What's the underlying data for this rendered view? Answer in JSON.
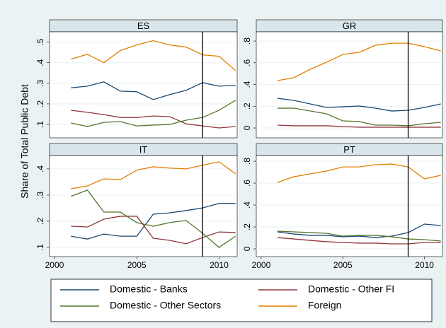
{
  "chart_data": [
    {
      "type": "line",
      "title": "ES",
      "y_label": "Share of Total Public Debt",
      "x": [
        2001,
        2002,
        2003,
        2004,
        2005,
        2006,
        2007,
        2008,
        2009,
        2010,
        2011
      ],
      "xlim": [
        1999.7,
        2011.1
      ],
      "ylim": [
        0.035,
        0.55
      ],
      "yticks": [
        {
          "value": 0.1,
          "label": ".1"
        },
        {
          "value": 0.2,
          "label": ".2"
        },
        {
          "value": 0.3,
          "label": ".3"
        },
        {
          "value": 0.4,
          "label": ".4"
        },
        {
          "value": 0.5,
          "label": ".5"
        }
      ],
      "vline": 2009,
      "grid": true,
      "series": [
        {
          "name": "Domestic - Banks",
          "color": "#1a476f",
          "values": [
            0.278,
            0.286,
            0.307,
            0.262,
            0.259,
            0.221,
            0.245,
            0.266,
            0.303,
            0.286,
            0.29
          ]
        },
        {
          "name": "Domestic - Other FI",
          "color": "#90353b",
          "values": [
            0.169,
            0.159,
            0.148,
            0.134,
            0.134,
            0.141,
            0.138,
            0.103,
            0.093,
            0.083,
            0.09
          ]
        },
        {
          "name": "Domestic - Other Sectors",
          "color": "#55752f",
          "values": [
            0.107,
            0.09,
            0.11,
            0.114,
            0.093,
            0.097,
            0.1,
            0.121,
            0.134,
            0.169,
            0.217
          ]
        },
        {
          "name": "Foreign",
          "color": "#e37e00",
          "values": [
            0.417,
            0.441,
            0.4,
            0.459,
            0.486,
            0.507,
            0.486,
            0.476,
            0.438,
            0.431,
            0.362
          ]
        }
      ]
    },
    {
      "type": "line",
      "title": "GR",
      "x": [
        2001,
        2002,
        2003,
        2004,
        2005,
        2006,
        2007,
        2008,
        2009,
        2010,
        2011
      ],
      "xlim": [
        1999.7,
        2011.1
      ],
      "ylim": [
        -0.091,
        0.885
      ],
      "yticks": [
        0,
        {
          "value": 0.2,
          "label": ".2"
        },
        {
          "value": 0.4,
          "label": ".4"
        },
        {
          "value": 0.6,
          "label": ".6"
        },
        {
          "value": 0.8,
          "label": ".8"
        }
      ],
      "vline": 2009,
      "grid": true,
      "series": [
        {
          "name": "Domestic - Banks",
          "color": "#1a476f",
          "values": [
            0.273,
            0.254,
            0.221,
            0.189,
            0.195,
            0.202,
            0.182,
            0.156,
            0.163,
            0.189,
            0.221
          ]
        },
        {
          "name": "Domestic - Other FI",
          "color": "#90353b",
          "values": [
            0.026,
            0.02,
            0.02,
            0.02,
            0.013,
            0.007,
            0.007,
            0.007,
            0.007,
            0.007,
            0.007
          ]
        },
        {
          "name": "Domestic - Other Sectors",
          "color": "#55752f",
          "values": [
            0.182,
            0.182,
            0.156,
            0.13,
            0.065,
            0.059,
            0.026,
            0.026,
            0.02,
            0.039,
            0.052
          ]
        },
        {
          "name": "Foreign",
          "color": "#e37e00",
          "values": [
            0.436,
            0.462,
            0.54,
            0.605,
            0.676,
            0.696,
            0.761,
            0.78,
            0.78,
            0.748,
            0.709
          ]
        }
      ]
    },
    {
      "type": "line",
      "title": "IT",
      "x": [
        2001,
        2002,
        2003,
        2004,
        2005,
        2006,
        2007,
        2008,
        2009,
        2010,
        2011
      ],
      "xlim": [
        1999.7,
        2011.1
      ],
      "ylim": [
        0.065,
        0.451
      ],
      "xticks": [
        2000,
        2005,
        2010
      ],
      "yticks": [
        {
          "value": 0.1,
          "label": ".1"
        },
        {
          "value": 0.2,
          "label": ".2"
        },
        {
          "value": 0.3,
          "label": ".3"
        },
        {
          "value": 0.4,
          "label": ".4"
        }
      ],
      "vline": 2009,
      "grid": true,
      "series": [
        {
          "name": "Domestic - Banks",
          "color": "#1a476f",
          "values": [
            0.143,
            0.132,
            0.151,
            0.143,
            0.143,
            0.227,
            0.232,
            0.241,
            0.251,
            0.268,
            0.268
          ]
        },
        {
          "name": "Domestic - Other FI",
          "color": "#90353b",
          "values": [
            0.181,
            0.178,
            0.208,
            0.219,
            0.219,
            0.135,
            0.127,
            0.114,
            0.138,
            0.159,
            0.157
          ]
        },
        {
          "name": "Domestic - Other Sectors",
          "color": "#55752f",
          "values": [
            0.295,
            0.319,
            0.235,
            0.235,
            0.195,
            0.181,
            0.195,
            0.203,
            0.154,
            0.1,
            0.143
          ]
        },
        {
          "name": "Foreign",
          "color": "#e37e00",
          "values": [
            0.324,
            0.335,
            0.362,
            0.359,
            0.395,
            0.408,
            0.403,
            0.4,
            0.414,
            0.427,
            0.381
          ]
        }
      ]
    },
    {
      "type": "line",
      "title": "PT",
      "x": [
        2001,
        2002,
        2003,
        2004,
        2005,
        2006,
        2007,
        2008,
        2009,
        2010,
        2011
      ],
      "xlim": [
        1999.7,
        2011.1
      ],
      "ylim": [
        -0.071,
        0.852
      ],
      "xticks": [
        2000,
        2005,
        2010
      ],
      "yticks": [
        0,
        {
          "value": 0.2,
          "label": ".2"
        },
        {
          "value": 0.4,
          "label": ".4"
        },
        {
          "value": 0.6,
          "label": ".6"
        },
        {
          "value": 0.8,
          "label": ".8"
        }
      ],
      "vline": 2009,
      "grid": true,
      "series": [
        {
          "name": "Domestic - Banks",
          "color": "#1a476f",
          "values": [
            0.155,
            0.135,
            0.123,
            0.123,
            0.11,
            0.116,
            0.103,
            0.116,
            0.148,
            0.226,
            0.213
          ]
        },
        {
          "name": "Domestic - Other FI",
          "color": "#90353b",
          "values": [
            0.103,
            0.09,
            0.077,
            0.065,
            0.058,
            0.052,
            0.052,
            0.045,
            0.045,
            0.058,
            0.058
          ]
        },
        {
          "name": "Domestic - Other Sectors",
          "color": "#55752f",
          "values": [
            0.161,
            0.155,
            0.148,
            0.142,
            0.116,
            0.123,
            0.123,
            0.11,
            0.09,
            0.084,
            0.071
          ]
        },
        {
          "name": "Foreign",
          "color": "#e37e00",
          "values": [
            0.606,
            0.658,
            0.684,
            0.71,
            0.748,
            0.748,
            0.768,
            0.774,
            0.748,
            0.639,
            0.671
          ]
        }
      ]
    }
  ]
}
